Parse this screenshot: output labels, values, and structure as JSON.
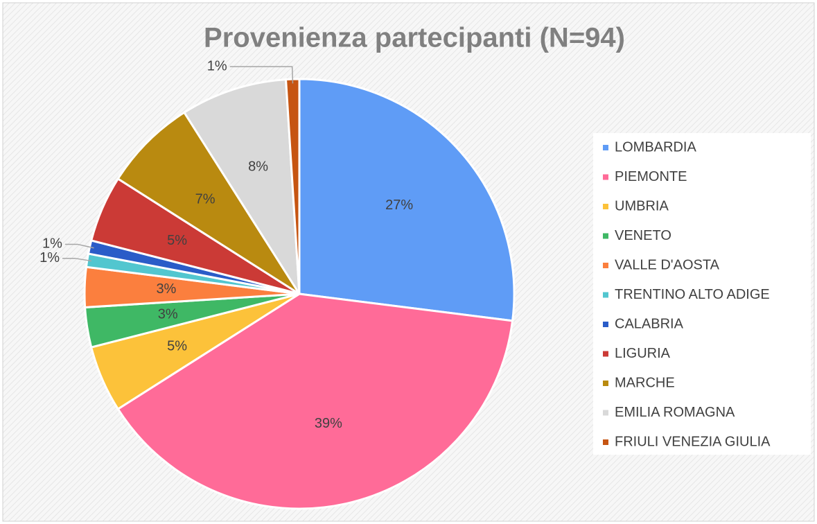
{
  "chart_data": {
    "type": "pie",
    "title": "Provenienza partecipanti (N=94)",
    "categories": [
      "LOMBARDIA",
      "PIEMONTE",
      "UMBRIA",
      "VENETO",
      "VALLE D'AOSTA",
      "TRENTINO ALTO ADIGE",
      "CALABRIA",
      "LIGURIA",
      "MARCHE",
      "EMILIA ROMAGNA",
      "FRIULI VENEZIA GIULIA"
    ],
    "values": [
      27,
      39,
      5,
      3,
      3,
      1,
      1,
      5,
      7,
      8,
      1
    ],
    "value_labels": [
      "27%",
      "39%",
      "5%",
      "3%",
      "3%",
      "1%",
      "1%",
      "5%",
      "7%",
      "8%",
      "1%"
    ],
    "colors": [
      "#5f9cf6",
      "#ff6b98",
      "#fcc23a",
      "#3fb865",
      "#fb7f3e",
      "#52c6cf",
      "#2a5cc8",
      "#cb3a36",
      "#b98a10",
      "#d9d9d9",
      "#c65512"
    ],
    "legend": "right"
  }
}
